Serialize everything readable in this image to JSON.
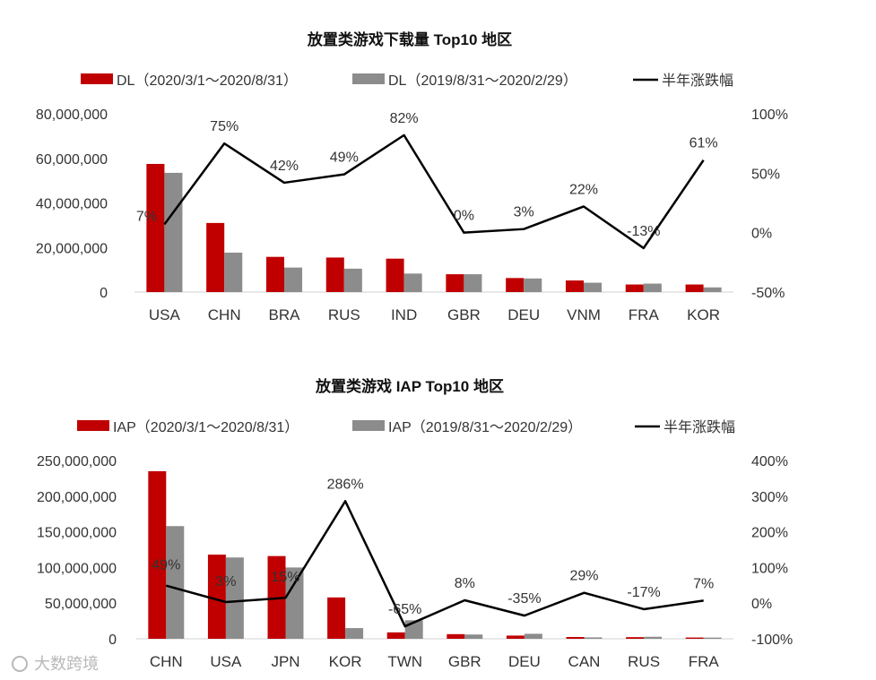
{
  "watermark": "大数跨境",
  "chart_data": [
    {
      "type": "bar",
      "title": "放置类游戏下载量 Top10 地区",
      "categories": [
        "USA",
        "CHN",
        "BRA",
        "RUS",
        "IND",
        "GBR",
        "DEU",
        "VNM",
        "FRA",
        "KOR"
      ],
      "series": [
        {
          "name": "DL（2020/3/1～2020/8/31）",
          "color": "#c00000",
          "values": [
            57500000,
            31000000,
            15800000,
            15500000,
            15000000,
            8000000,
            6300000,
            5200000,
            3400000,
            3400000
          ]
        },
        {
          "name": "DL（2019/8/31～2020/2/29）",
          "color": "#8c8c8c",
          "values": [
            53500000,
            17700000,
            11000000,
            10500000,
            8300000,
            8000000,
            6100000,
            4200000,
            3800000,
            2100000
          ]
        }
      ],
      "line": {
        "name": "半年涨跌幅",
        "color": "#000000",
        "values": [
          7,
          75,
          42,
          49,
          82,
          0,
          3,
          22,
          -13,
          61
        ],
        "labels": [
          "7%",
          "75%",
          "42%",
          "49%",
          "82%",
          "0%",
          "3%",
          "22%",
          "-13%",
          "61%"
        ]
      },
      "ylim": [
        0,
        80000000
      ],
      "yticks": [
        "0",
        "20,000,000",
        "40,000,000",
        "60,000,000",
        "80,000,000"
      ],
      "y2lim": [
        -50,
        100
      ],
      "y2ticks": [
        "-50%",
        "0%",
        "50%",
        "100%"
      ],
      "xlabel": "",
      "ylabel": "",
      "legend": "top"
    },
    {
      "type": "bar",
      "title": "放置类游戏 IAP Top10 地区",
      "categories": [
        "CHN",
        "USA",
        "JPN",
        "KOR",
        "TWN",
        "GBR",
        "DEU",
        "CAN",
        "RUS",
        "FRA"
      ],
      "series": [
        {
          "name": "IAP（2020/3/1～2020/8/31）",
          "color": "#c00000",
          "values": [
            235000000,
            118000000,
            116000000,
            58000000,
            9000000,
            6500000,
            4500000,
            2500000,
            2300000,
            1800000
          ]
        },
        {
          "name": "IAP（2019/8/31～2020/2/29）",
          "color": "#8c8c8c",
          "values": [
            158000000,
            114000000,
            100000000,
            15000000,
            26000000,
            6000000,
            7000000,
            2000000,
            2800000,
            1700000
          ]
        }
      ],
      "line": {
        "name": "半年涨跌幅",
        "color": "#000000",
        "values": [
          49,
          3,
          15,
          286,
          -65,
          8,
          -35,
          29,
          -17,
          7
        ],
        "labels": [
          "49%",
          "3%",
          "15%",
          "286%",
          "-65%",
          "8%",
          "-35%",
          "29%",
          "-17%",
          "7%"
        ]
      },
      "ylim": [
        0,
        250000000
      ],
      "yticks": [
        "0",
        "50,000,000",
        "100,000,000",
        "150,000,000",
        "200,000,000",
        "250,000,000"
      ],
      "y2lim": [
        -100,
        400
      ],
      "y2ticks": [
        "-100%",
        "0%",
        "100%",
        "200%",
        "300%",
        "400%"
      ],
      "xlabel": "",
      "ylabel": "",
      "legend": "top"
    }
  ]
}
